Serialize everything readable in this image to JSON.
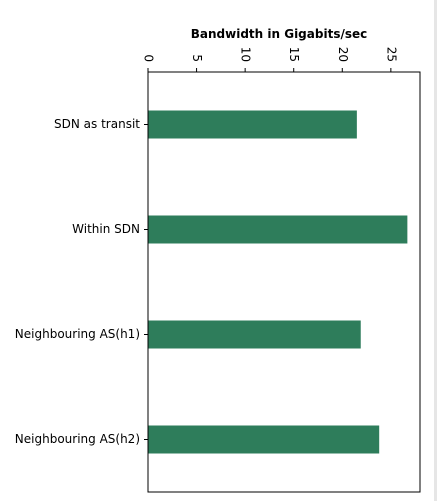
{
  "chart_data": {
    "type": "bar",
    "orientation": "horizontal",
    "title": "Bandwidth in Gigabits/sec",
    "categories": [
      "SDN as transit",
      "Within SDN",
      "Neighbouring AS(h1)",
      "Neighbouring AS(h2)"
    ],
    "values": [
      21.5,
      26.7,
      21.9,
      23.8
    ],
    "xlim": [
      0,
      28
    ],
    "xticks": [
      "0",
      "5",
      "10",
      "15",
      "20",
      "25"
    ],
    "grid": false,
    "bar_color": "#2e7d5b",
    "tick_label_rotation": "90deg"
  }
}
